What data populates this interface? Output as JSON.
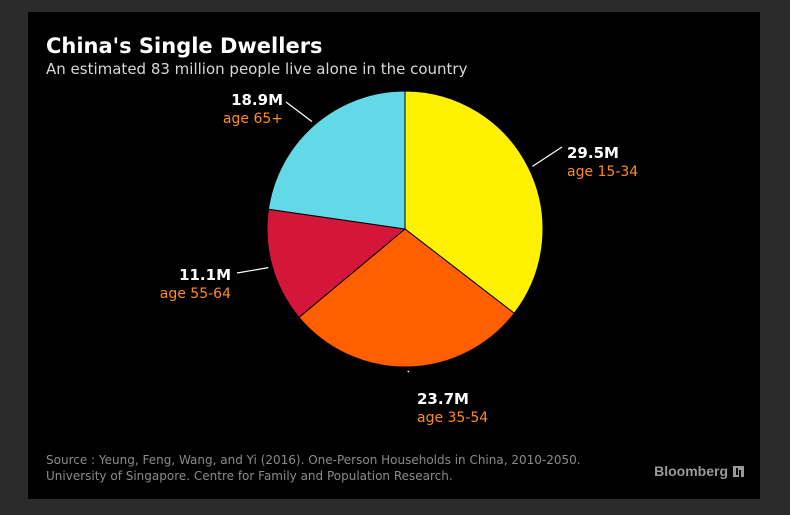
{
  "header": {
    "title": "China's Single Dwellers",
    "subtitle": "An estimated 83 million people live alone in the country"
  },
  "chart_data": {
    "type": "pie",
    "slices": [
      {
        "label": "age 15-34",
        "value": 29.5,
        "value_label": "29.5M",
        "color": "#fff200"
      },
      {
        "label": "age 35-54",
        "value": 23.7,
        "value_label": "23.7M",
        "color": "#ff5f00"
      },
      {
        "label": "age 55-64",
        "value": 11.1,
        "value_label": "11.1M",
        "color": "#d4163a"
      },
      {
        "label": "age 65+",
        "value": 18.9,
        "value_label": "18.9M",
        "color": "#63d8e6"
      }
    ],
    "start_direction": "12 o'clock",
    "direction": "clockwise"
  },
  "footer": {
    "source_line1": "Source : Yeung, Feng, Wang, and Yi (2016). One-Person Households in China, 2010-2050.",
    "source_line2": "University of Singapore. Centre for Family and Population Research.",
    "brand": "Bloomberg"
  }
}
